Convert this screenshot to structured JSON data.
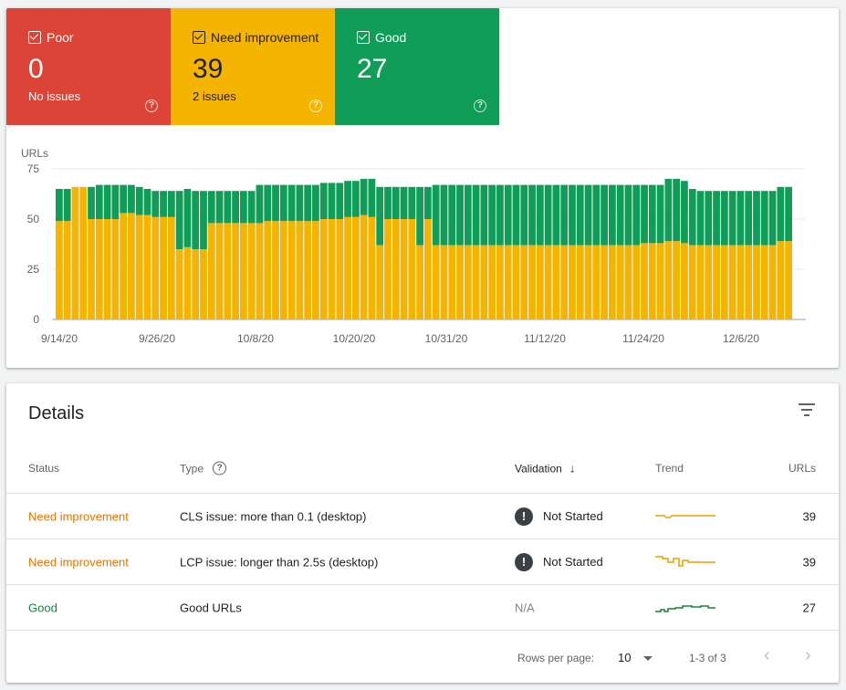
{
  "tiles": [
    {
      "key": "poor",
      "label": "Poor",
      "count": "0",
      "sub": "No issues",
      "color": "#db4437"
    },
    {
      "key": "ni",
      "label": "Need improvement",
      "count": "39",
      "sub": "2 issues",
      "color": "#f4b400"
    },
    {
      "key": "good",
      "label": "Good",
      "count": "27",
      "sub": "",
      "color": "#0f9d58"
    }
  ],
  "chart_data": {
    "type": "bar",
    "stacked": true,
    "ylabel": "URLs",
    "ylim": [
      0,
      75
    ],
    "yticks": [
      0,
      25,
      50,
      75
    ],
    "xtick_labels": [
      "9/14/20",
      "9/26/20",
      "10/8/20",
      "10/20/20",
      "10/31/20",
      "11/12/20",
      "11/24/20",
      "12/6/20"
    ],
    "series": [
      {
        "name": "Need improvement",
        "color": "#f4b400",
        "values": [
          49,
          49,
          66,
          66,
          50,
          50,
          50,
          50,
          53,
          53,
          52,
          52,
          51,
          51,
          51,
          35,
          36,
          35,
          35,
          48,
          48,
          48,
          48,
          48,
          48,
          48,
          49,
          49,
          49,
          49,
          49,
          49,
          49,
          50,
          50,
          50,
          51,
          51,
          52,
          51,
          37,
          50,
          50,
          50,
          50,
          37,
          50,
          37,
          37,
          37,
          37,
          37,
          37,
          37,
          37,
          37,
          37,
          37,
          37,
          37,
          37,
          37,
          37,
          37,
          37,
          37,
          37,
          37,
          37,
          37,
          37,
          37,
          37,
          38,
          38,
          38,
          39,
          39,
          38,
          37,
          37,
          37,
          37,
          37,
          37,
          37,
          37,
          37,
          37,
          37,
          39,
          39
        ]
      },
      {
        "name": "Good",
        "color": "#0f9d58",
        "values": [
          16,
          16,
          0,
          0,
          16,
          17,
          17,
          17,
          14,
          14,
          14,
          13,
          13,
          13,
          13,
          29,
          29,
          29,
          29,
          16,
          16,
          16,
          16,
          16,
          16,
          19,
          18,
          18,
          18,
          18,
          18,
          18,
          18,
          18,
          18,
          18,
          18,
          18,
          18,
          19,
          29,
          16,
          16,
          16,
          16,
          29,
          16,
          30,
          30,
          30,
          30,
          30,
          30,
          30,
          30,
          30,
          30,
          30,
          30,
          30,
          30,
          30,
          30,
          30,
          30,
          30,
          30,
          30,
          30,
          30,
          30,
          30,
          30,
          29,
          29,
          29,
          31,
          31,
          31,
          28,
          27,
          27,
          27,
          27,
          27,
          27,
          27,
          27,
          27,
          27,
          27,
          27
        ]
      }
    ]
  },
  "details": {
    "title": "Details",
    "filter_icon": "filter-icon",
    "columns": {
      "status": "Status",
      "type": "Type",
      "validation": "Validation",
      "trend": "Trend",
      "urls": "URLs"
    },
    "rows": [
      {
        "status": "Need improvement",
        "status_kind": "ni",
        "type": "CLS issue: more than 0.1 (desktop)",
        "validation": "Not Started",
        "validation_icon": "exclamation-icon",
        "trend_color": "#e8a100",
        "urls": "39"
      },
      {
        "status": "Need improvement",
        "status_kind": "ni",
        "type": "LCP issue: longer than 2.5s (desktop)",
        "validation": "Not Started",
        "validation_icon": "exclamation-icon",
        "trend_color": "#e8a100",
        "urls": "39"
      },
      {
        "status": "Good",
        "status_kind": "good",
        "type": "Good URLs",
        "validation": "N/A",
        "validation_icon": "",
        "trend_color": "#188038",
        "urls": "27"
      }
    ],
    "footer": {
      "rows_per_page_label": "Rows per page:",
      "rows_per_page_value": "10",
      "range": "1-3 of 3"
    }
  }
}
